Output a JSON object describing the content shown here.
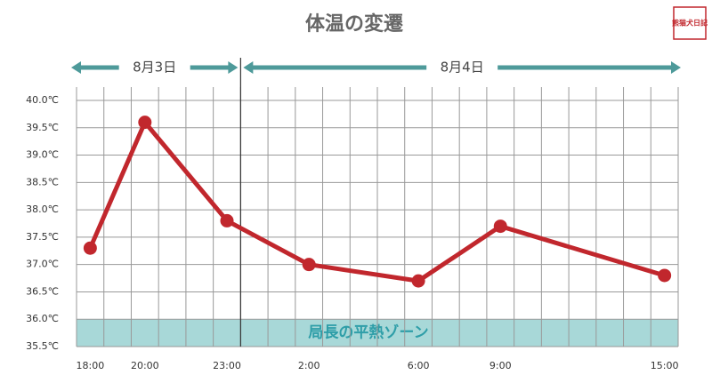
{
  "chart_data": {
    "type": "line",
    "title": "体温の変遷",
    "logo": "熊猫犬日記",
    "days": [
      "8月3日",
      "8月4日"
    ],
    "x": [
      "18:00",
      "20:00",
      "23:00",
      "2:00",
      "6:00",
      "9:00",
      "15:00"
    ],
    "series": [
      {
        "color": "#c1272d",
        "values": [
          37.3,
          39.6,
          37.8,
          37.0,
          36.7,
          37.7,
          36.8
        ]
      }
    ],
    "ylim": [
      35.5,
      40.0
    ],
    "yticks": [
      {
        "value": 35.5,
        "label": "35.5℃"
      },
      {
        "value": 36.0,
        "label": "36.0℃"
      },
      {
        "value": 36.5,
        "label": "36.5℃"
      },
      {
        "value": 37.0,
        "label": "37.0℃"
      },
      {
        "value": 37.5,
        "label": "37.5℃"
      },
      {
        "value": 38.0,
        "label": "38.0℃"
      },
      {
        "value": 38.5,
        "label": "38.5℃"
      },
      {
        "value": 39.0,
        "label": "39.0℃"
      },
      {
        "value": 39.5,
        "label": "39.5℃"
      },
      {
        "value": 40.0,
        "label": "40.0℃"
      }
    ],
    "band": {
      "range": [
        35.5,
        36.0
      ],
      "label": "局長の平熱ゾーン",
      "color": "#a8d8d8"
    },
    "grid": true
  }
}
